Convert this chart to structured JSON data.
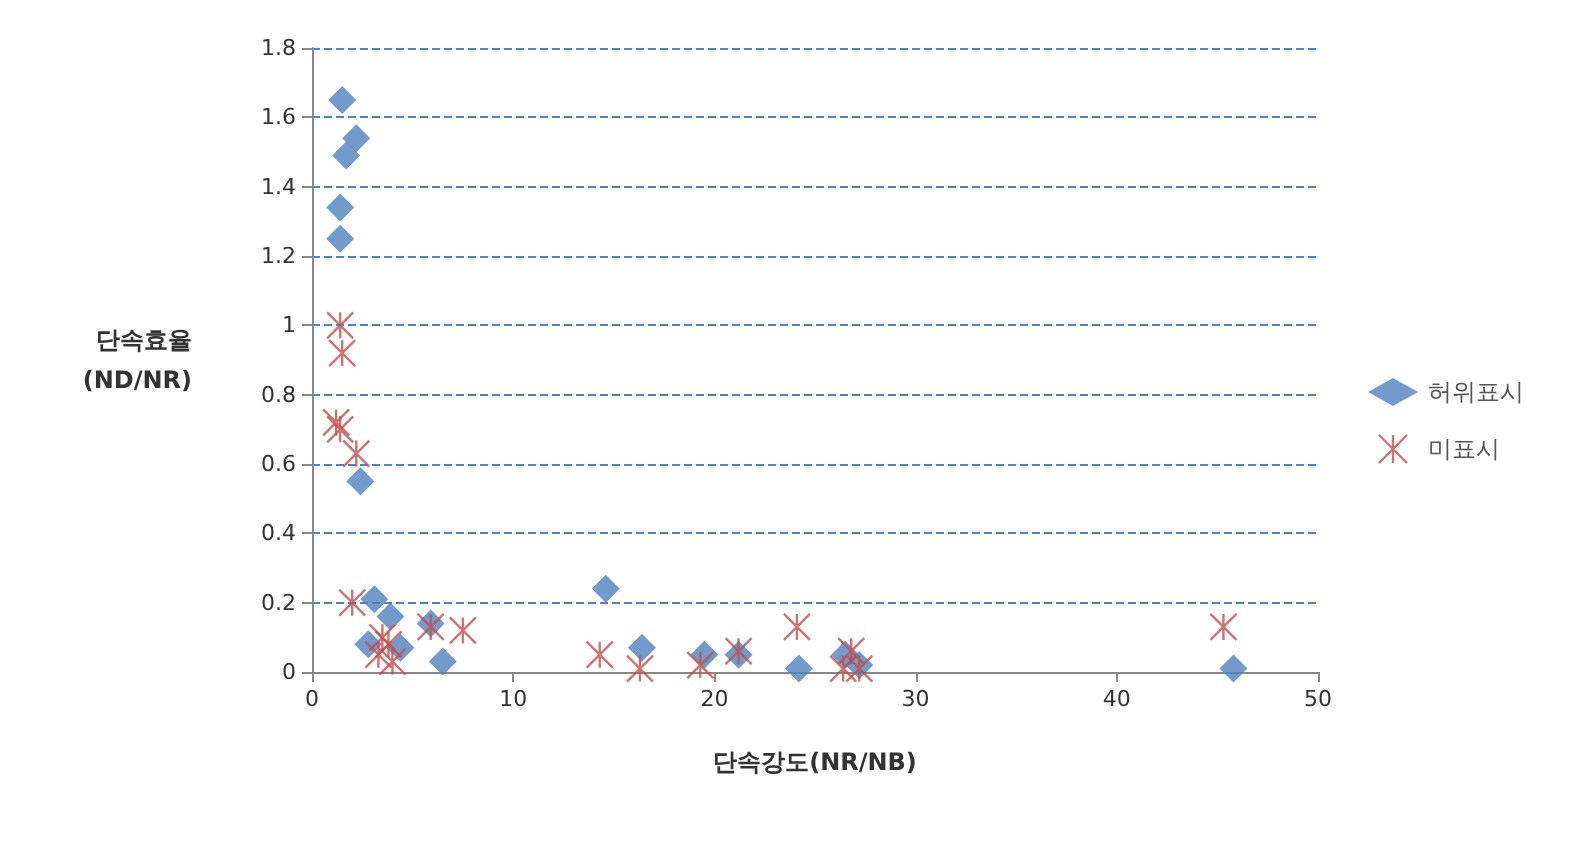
{
  "chart_data": {
    "type": "scatter",
    "xlabel": "단속강도(NR/NB)",
    "ylabel": "단속효율\n(ND/NR)",
    "xlim": [
      0,
      50
    ],
    "xticks": [
      0,
      10,
      20,
      30,
      40,
      50
    ],
    "ylim": [
      0,
      1.8
    ],
    "yticks": [
      0,
      0.2,
      0.4,
      0.6,
      0.8,
      1,
      1.2,
      1.4,
      1.6,
      1.8
    ],
    "grid": "y",
    "legend": "right",
    "series": [
      {
        "name": "허위표시",
        "color": "#4f81bd",
        "marker": "diamond",
        "x": [
          1.5,
          1.7,
          2.2,
          1.4,
          1.4,
          2.4,
          3.1,
          3.9,
          2.8,
          4.4,
          5.9,
          6.5,
          14.6,
          16.4,
          19.5,
          21.2,
          24.2,
          26.5,
          27.2,
          45.8
        ],
        "values": [
          1.65,
          1.49,
          1.54,
          1.34,
          1.25,
          0.55,
          0.21,
          0.16,
          0.08,
          0.07,
          0.14,
          0.03,
          0.24,
          0.07,
          0.05,
          0.05,
          0.01,
          0.05,
          0.02,
          0.01
        ]
      },
      {
        "name": "미표시",
        "color": "#c0504d",
        "marker": "cross",
        "x": [
          1.4,
          1.5,
          1.2,
          1.4,
          2.2,
          2.0,
          3.5,
          3.3,
          4.0,
          3.8,
          5.9,
          7.5,
          14.3,
          16.3,
          19.3,
          21.2,
          24.1,
          26.4,
          26.8,
          27.2,
          45.3
        ],
        "values": [
          1.0,
          0.92,
          0.72,
          0.7,
          0.63,
          0.2,
          0.1,
          0.05,
          0.03,
          0.08,
          0.13,
          0.12,
          0.05,
          0.01,
          0.02,
          0.06,
          0.13,
          0.01,
          0.06,
          0.01,
          0.13
        ]
      }
    ]
  }
}
